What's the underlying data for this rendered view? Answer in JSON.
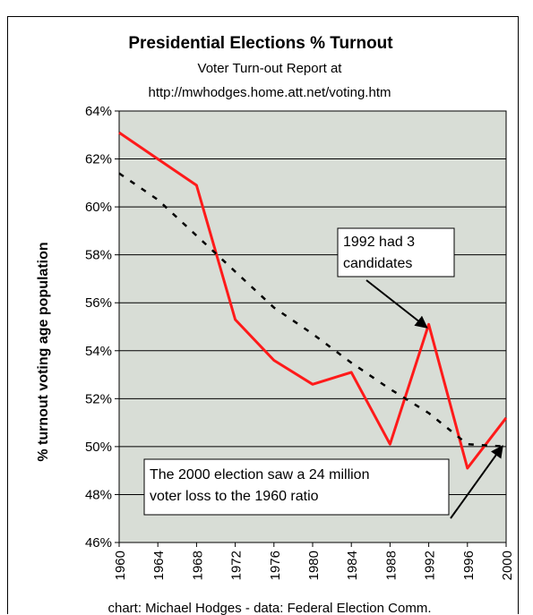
{
  "chart_data": {
    "type": "line",
    "title": "Presidential Elections % Turnout",
    "subtitle_line1": "Voter Turn-out Report at",
    "subtitle_line2": "http://mwhodges.home.att.net/voting.htm",
    "ylabel": "% turnout voting age population",
    "xlabel": "",
    "footer": "chart: Michael Hodges -  data: Federal Election Comm.",
    "ylim": [
      46,
      64
    ],
    "yticks": [
      "46%",
      "48%",
      "50%",
      "52%",
      "54%",
      "56%",
      "58%",
      "60%",
      "62%",
      "64%"
    ],
    "x": [
      1960,
      1964,
      1968,
      1972,
      1976,
      1980,
      1984,
      1988,
      1992,
      1996,
      2000
    ],
    "xticks": [
      "1960",
      "1964",
      "1968",
      "1972",
      "1976",
      "1980",
      "1984",
      "1988",
      "1992",
      "1996",
      "2000"
    ],
    "grid": "horizontal",
    "plot_background": "#d8ddd6",
    "series": [
      {
        "values": [
          63.1,
          62.0,
          60.9,
          55.3,
          53.6,
          52.6,
          53.1,
          50.1,
          55.1,
          49.1,
          51.2
        ],
        "color": "#ff1a1a",
        "style": "solid"
      },
      {
        "values": [
          61.4,
          60.3,
          58.8,
          57.3,
          55.8,
          54.7,
          53.5,
          52.4,
          51.4,
          50.1,
          50.0
        ],
        "color": "#000000",
        "style": "dashed"
      }
    ],
    "annotations": [
      {
        "lines": [
          "1992 had 3",
          "candidates"
        ],
        "arrow_to": [
          1992,
          55.0
        ]
      },
      {
        "lines": [
          "The 2000 election saw a 24 million",
          "voter loss to the 1960 ratio"
        ],
        "arrow_to": [
          2000,
          50.1
        ]
      }
    ]
  }
}
